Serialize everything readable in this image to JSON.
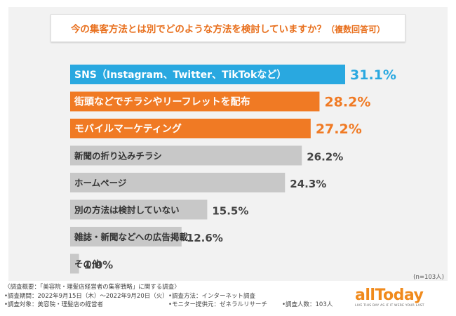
{
  "title": "今の集客方法とは別でどのような方法を検討していますか？",
  "title_sub": "（複数回答可）",
  "chart_data": {
    "type": "bar",
    "orientation": "horizontal",
    "categories": [
      "SNS（Instagram、Twitter、TikTokなど）",
      "街頭などでチラシやリーフレットを配布",
      "モバイルマーケティング",
      "新聞の折り込みチラシ",
      "ホームページ",
      "別の方法は検討していない",
      "雑誌・新聞などへの広告掲載",
      "その他"
    ],
    "values": [
      31.1,
      28.2,
      27.2,
      26.2,
      24.3,
      15.5,
      12.6,
      1.0
    ],
    "value_labels": [
      "31.1%",
      "28.2%",
      "27.2%",
      "26.2%",
      "24.3%",
      "15.5%",
      "12.6%",
      "1.0%"
    ],
    "bar_colors": [
      "#29a8e0",
      "#f07a24",
      "#f07a24",
      "#c8c8c8",
      "#c8c8c8",
      "#c8c8c8",
      "#c8c8c8",
      "#c8c8c8"
    ],
    "label_colors": [
      "#ffffff",
      "#ffffff",
      "#ffffff",
      "#333333",
      "#333333",
      "#333333",
      "#333333",
      "#333333"
    ],
    "xlim": [
      0,
      31.1
    ],
    "grid": false
  },
  "n_note": "(n=103人)",
  "footer": {
    "line1": "〈調査概要：「美容院・理髪店経営者の集客戦略」に関する調査〉",
    "line2a": "•調査期間：2022年9月15日（木）〜2022年9月20日（火）",
    "line2b": "•調査方法：インターネット調査",
    "line3a": "•調査対象：美容院・理髪店の経営者",
    "line3b": "•モニター提供元：ゼネラルリサーチ",
    "line3c": "•調査人数：103人"
  },
  "logo": {
    "text": "allToday",
    "tagline": "LIVE THIS DAY AS IF IT WERE YOUR LAST"
  }
}
